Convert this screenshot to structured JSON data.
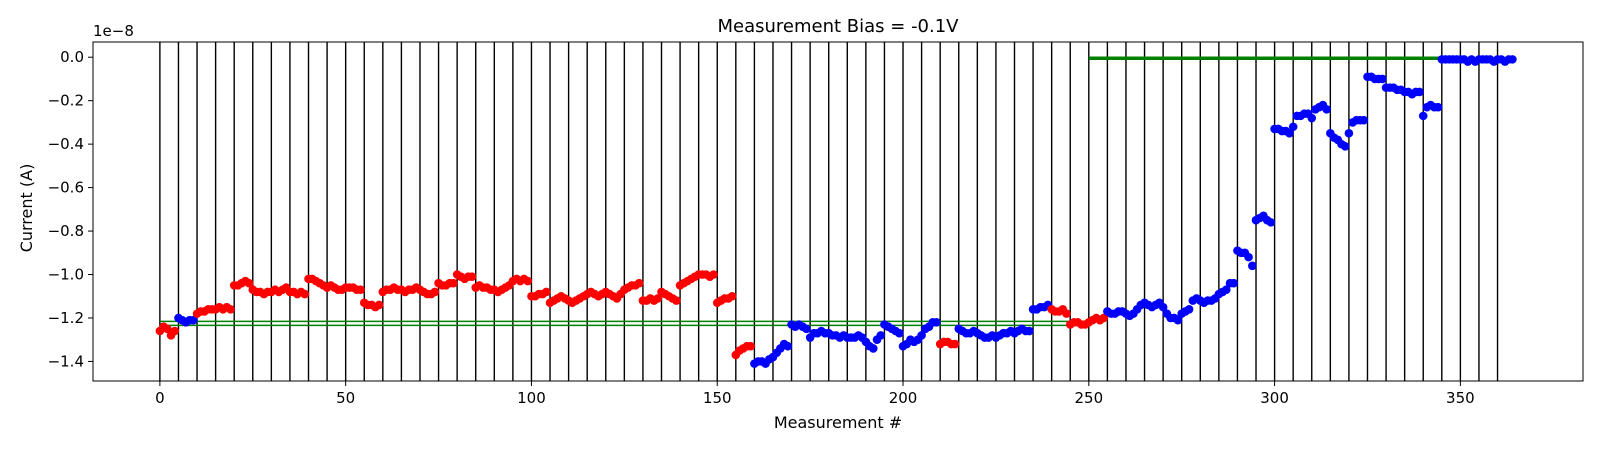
{
  "chart_data": {
    "type": "scatter",
    "title": "Measurement Bias = -0.1V",
    "xlabel": "Measurement #",
    "ylabel": "Current (A)",
    "y_offset_label": "1e−8",
    "xlim": [
      -18,
      383
    ],
    "ylim": [
      -1.49,
      0.07
    ],
    "x_ticks": [
      0,
      50,
      100,
      150,
      200,
      250,
      300,
      350
    ],
    "x_tick_labels": [
      "0",
      "50",
      "100",
      "150",
      "200",
      "250",
      "300",
      "350"
    ],
    "y_ticks": [
      0.0,
      -0.2,
      -0.4,
      -0.6,
      -0.8,
      -1.0,
      -1.2,
      -1.4
    ],
    "y_tick_labels": [
      "0.0",
      "−0.2",
      "−0.4",
      "−0.6",
      "−0.8",
      "−1.0",
      "−1.2",
      "−1.4"
    ],
    "grid": false,
    "colors": {
      "red": "#ff0000",
      "blue": "#0000ff",
      "green": "#008000",
      "vline": "#000000"
    },
    "vertical_lines_x": [
      0,
      5,
      10,
      15,
      20,
      25,
      30,
      35,
      40,
      45,
      50,
      55,
      60,
      65,
      70,
      75,
      80,
      85,
      90,
      95,
      100,
      105,
      110,
      115,
      120,
      125,
      130,
      135,
      140,
      145,
      150,
      155,
      160,
      165,
      170,
      175,
      180,
      185,
      190,
      195,
      200,
      205,
      210,
      215,
      220,
      225,
      230,
      235,
      240,
      245,
      250,
      255,
      260,
      265,
      270,
      275,
      280,
      285,
      290,
      295,
      300,
      305,
      310,
      315,
      320,
      325,
      330,
      335,
      340,
      345,
      350,
      355,
      360
    ],
    "reference_lines": [
      {
        "x": [
          0,
          250
        ],
        "y": -1.225,
        "color": "#008000",
        "style": "double"
      },
      {
        "x": [
          250,
          345
        ],
        "y": -0.005,
        "color": "#008000",
        "style": "thick"
      }
    ],
    "segments": [
      {
        "x0": 0,
        "color": "red",
        "values": [
          -1.26,
          -1.24,
          -1.25,
          -1.28,
          -1.26
        ]
      },
      {
        "x0": 5,
        "color": "blue",
        "values": [
          -1.2,
          -1.21,
          -1.22,
          -1.21,
          -1.21
        ]
      },
      {
        "x0": 10,
        "color": "red",
        "values": [
          -1.18,
          -1.17,
          -1.17,
          -1.16,
          -1.16,
          -1.16,
          -1.15,
          -1.16,
          -1.15,
          -1.16
        ]
      },
      {
        "x0": 20,
        "color": "red",
        "values": [
          -1.05,
          -1.05,
          -1.04,
          -1.03,
          -1.04
        ]
      },
      {
        "x0": 25,
        "color": "red",
        "values": [
          -1.07,
          -1.08,
          -1.08,
          -1.09,
          -1.08,
          -1.08,
          -1.07,
          -1.08,
          -1.07,
          -1.06
        ]
      },
      {
        "x0": 35,
        "color": "red",
        "values": [
          -1.08,
          -1.08,
          -1.09,
          -1.08,
          -1.09
        ]
      },
      {
        "x0": 40,
        "color": "red",
        "values": [
          -1.02,
          -1.02,
          -1.03,
          -1.04,
          -1.05,
          -1.06,
          -1.05,
          -1.06,
          -1.07,
          -1.07
        ]
      },
      {
        "x0": 50,
        "color": "red",
        "values": [
          -1.06,
          -1.06,
          -1.06,
          -1.07,
          -1.07
        ]
      },
      {
        "x0": 55,
        "color": "red",
        "values": [
          -1.13,
          -1.14,
          -1.14,
          -1.15,
          -1.14
        ]
      },
      {
        "x0": 60,
        "color": "red",
        "values": [
          -1.08,
          -1.07,
          -1.07,
          -1.06,
          -1.07,
          -1.07,
          -1.08,
          -1.07,
          -1.07,
          -1.06
        ]
      },
      {
        "x0": 70,
        "color": "red",
        "values": [
          -1.07,
          -1.08,
          -1.09,
          -1.09,
          -1.08
        ]
      },
      {
        "x0": 75,
        "color": "red",
        "values": [
          -1.04,
          -1.05,
          -1.05,
          -1.04,
          -1.04
        ]
      },
      {
        "x0": 80,
        "color": "red",
        "values": [
          -1.0,
          -1.01,
          -1.02,
          -1.01,
          -1.01
        ]
      },
      {
        "x0": 85,
        "color": "red",
        "values": [
          -1.06,
          -1.05,
          -1.06,
          -1.06,
          -1.07,
          -1.07,
          -1.08,
          -1.07,
          -1.06,
          -1.05
        ]
      },
      {
        "x0": 95,
        "color": "red",
        "values": [
          -1.03,
          -1.02,
          -1.03,
          -1.02,
          -1.03
        ]
      },
      {
        "x0": 100,
        "color": "red",
        "values": [
          -1.1,
          -1.1,
          -1.09,
          -1.09,
          -1.08
        ]
      },
      {
        "x0": 105,
        "color": "red",
        "values": [
          -1.13,
          -1.12,
          -1.11,
          -1.1,
          -1.11,
          -1.12,
          -1.13,
          -1.12,
          -1.11,
          -1.1
        ]
      },
      {
        "x0": 115,
        "color": "red",
        "values": [
          -1.09,
          -1.08,
          -1.09,
          -1.1,
          -1.09,
          -1.08,
          -1.09,
          -1.1,
          -1.11,
          -1.09
        ]
      },
      {
        "x0": 125,
        "color": "red",
        "values": [
          -1.07,
          -1.06,
          -1.05,
          -1.05,
          -1.04
        ]
      },
      {
        "x0": 130,
        "color": "red",
        "values": [
          -1.12,
          -1.12,
          -1.11,
          -1.12,
          -1.11
        ]
      },
      {
        "x0": 135,
        "color": "red",
        "values": [
          -1.08,
          -1.09,
          -1.1,
          -1.11,
          -1.12
        ]
      },
      {
        "x0": 140,
        "color": "red",
        "values": [
          -1.05,
          -1.04,
          -1.03,
          -1.02,
          -1.01,
          -1.0,
          -1.0,
          -1.0,
          -1.01,
          -1.0
        ]
      },
      {
        "x0": 150,
        "color": "red",
        "values": [
          -1.13,
          -1.12,
          -1.11,
          -1.11,
          -1.1
        ]
      },
      {
        "x0": 155,
        "color": "red",
        "values": [
          -1.37,
          -1.35,
          -1.34,
          -1.33,
          -1.33
        ]
      },
      {
        "x0": 160,
        "color": "blue",
        "values": [
          -1.41,
          -1.4,
          -1.4,
          -1.41,
          -1.39,
          -1.38,
          -1.36,
          -1.34,
          -1.32,
          -1.33
        ]
      },
      {
        "x0": 170,
        "color": "blue",
        "values": [
          -1.23,
          -1.24,
          -1.23,
          -1.24,
          -1.25
        ]
      },
      {
        "x0": 175,
        "color": "blue",
        "values": [
          -1.29,
          -1.27,
          -1.27,
          -1.26,
          -1.27,
          -1.27,
          -1.28,
          -1.28,
          -1.29,
          -1.28
        ]
      },
      {
        "x0": 185,
        "color": "blue",
        "values": [
          -1.29,
          -1.29,
          -1.29,
          -1.28,
          -1.29
        ]
      },
      {
        "x0": 190,
        "color": "blue",
        "values": [
          -1.31,
          -1.33,
          -1.34,
          -1.3,
          -1.28
        ]
      },
      {
        "x0": 195,
        "color": "blue",
        "values": [
          -1.23,
          -1.24,
          -1.25,
          -1.26,
          -1.27
        ]
      },
      {
        "x0": 200,
        "color": "blue",
        "values": [
          -1.33,
          -1.32,
          -1.3,
          -1.31,
          -1.3
        ]
      },
      {
        "x0": 205,
        "color": "blue",
        "values": [
          -1.28,
          -1.25,
          -1.24,
          -1.22,
          -1.22
        ]
      },
      {
        "x0": 210,
        "color": "red",
        "values": [
          -1.32,
          -1.31,
          -1.31,
          -1.32,
          -1.32
        ]
      },
      {
        "x0": 215,
        "color": "blue",
        "values": [
          -1.25,
          -1.26,
          -1.27,
          -1.27,
          -1.26,
          -1.27,
          -1.28,
          -1.29,
          -1.29,
          -1.28
        ]
      },
      {
        "x0": 225,
        "color": "blue",
        "values": [
          -1.29,
          -1.28,
          -1.27,
          -1.27,
          -1.26,
          -1.27,
          -1.26,
          -1.25,
          -1.26,
          -1.26
        ]
      },
      {
        "x0": 235,
        "color": "blue",
        "values": [
          -1.16,
          -1.16,
          -1.15,
          -1.15,
          -1.14
        ]
      },
      {
        "x0": 240,
        "color": "red",
        "values": [
          -1.16,
          -1.17,
          -1.17,
          -1.16,
          -1.18
        ]
      },
      {
        "x0": 245,
        "color": "red",
        "values": [
          -1.23,
          -1.22,
          -1.22,
          -1.23,
          -1.23
        ]
      },
      {
        "x0": 250,
        "color": "red",
        "values": [
          -1.22,
          -1.21,
          -1.2,
          -1.21,
          -1.2
        ]
      },
      {
        "x0": 255,
        "color": "blue",
        "values": [
          -1.17,
          -1.18,
          -1.18,
          -1.17,
          -1.17,
          -1.18,
          -1.19,
          -1.18,
          -1.16,
          -1.14
        ]
      },
      {
        "x0": 265,
        "color": "blue",
        "values": [
          -1.13,
          -1.14,
          -1.15,
          -1.14,
          -1.13,
          -1.15,
          -1.18,
          -1.2,
          -1.2,
          -1.21
        ]
      },
      {
        "x0": 275,
        "color": "blue",
        "values": [
          -1.18,
          -1.17,
          -1.16,
          -1.12,
          -1.11,
          -1.12,
          -1.13,
          -1.12,
          -1.12,
          -1.11
        ]
      },
      {
        "x0": 285,
        "color": "blue",
        "values": [
          -1.09,
          -1.08,
          -1.07,
          -1.04,
          -1.04
        ]
      },
      {
        "x0": 290,
        "color": "blue",
        "values": [
          -0.89,
          -0.9,
          -0.9,
          -0.92,
          -0.96
        ]
      },
      {
        "x0": 295,
        "color": "blue",
        "values": [
          -0.75,
          -0.74,
          -0.73,
          -0.75,
          -0.76
        ]
      },
      {
        "x0": 300,
        "color": "blue",
        "values": [
          -0.33,
          -0.33,
          -0.34,
          -0.34,
          -0.35,
          -0.32,
          -0.27,
          -0.27,
          -0.26,
          -0.26
        ]
      },
      {
        "x0": 310,
        "color": "blue",
        "values": [
          -0.28,
          -0.24,
          -0.23,
          -0.22,
          -0.24
        ]
      },
      {
        "x0": 315,
        "color": "blue",
        "values": [
          -0.35,
          -0.37,
          -0.38,
          -0.4,
          -0.41,
          -0.35,
          -0.3,
          -0.29,
          -0.29,
          -0.29
        ]
      },
      {
        "x0": 325,
        "color": "blue",
        "values": [
          -0.09,
          -0.09,
          -0.1,
          -0.1,
          -0.1
        ]
      },
      {
        "x0": 330,
        "color": "blue",
        "values": [
          -0.14,
          -0.14,
          -0.14,
          -0.15,
          -0.15
        ]
      },
      {
        "x0": 335,
        "color": "blue",
        "values": [
          -0.16,
          -0.16,
          -0.17,
          -0.16,
          -0.16
        ]
      },
      {
        "x0": 340,
        "color": "blue",
        "values": [
          -0.27,
          -0.23,
          -0.22,
          -0.23,
          -0.23
        ]
      },
      {
        "x0": 345,
        "color": "blue",
        "values": [
          -0.01,
          -0.01,
          -0.01,
          -0.01,
          -0.01,
          -0.01,
          -0.01,
          -0.02,
          -0.01,
          -0.02
        ]
      },
      {
        "x0": 355,
        "color": "blue",
        "values": [
          -0.01,
          -0.01,
          -0.01,
          -0.01,
          -0.02,
          -0.01,
          -0.01,
          -0.02,
          -0.01,
          -0.01
        ]
      }
    ]
  }
}
